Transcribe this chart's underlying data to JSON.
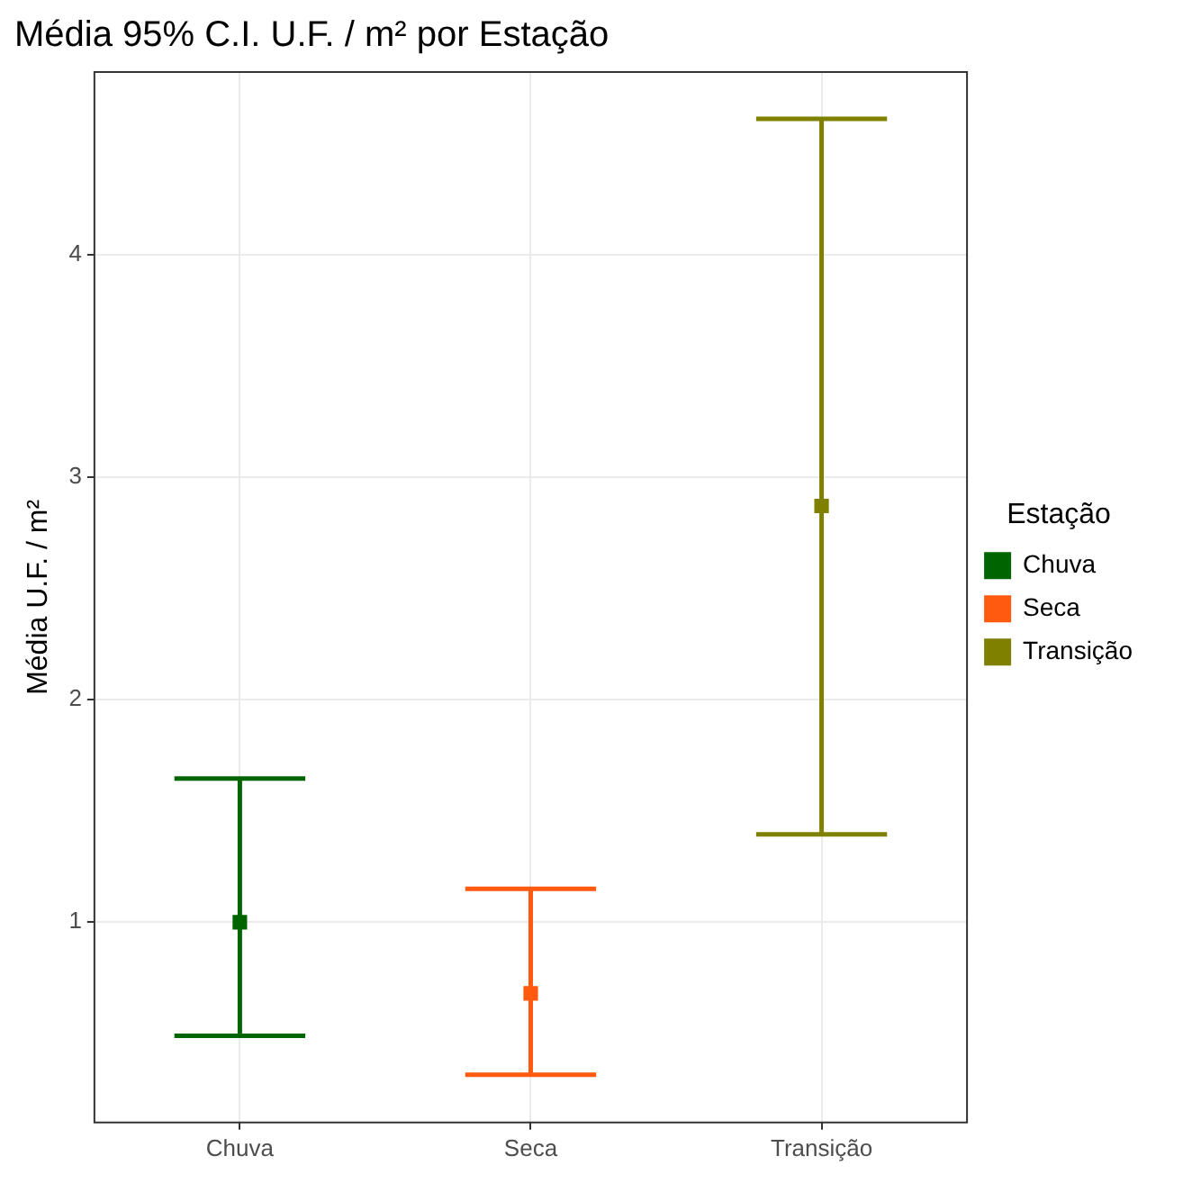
{
  "chart_data": {
    "type": "scatter",
    "title": "Média 95% C.I. U.F. / m² por Estação",
    "ylabel": "Média U.F. / m²",
    "legend_title": "Estação",
    "categories": [
      "Chuva",
      "Seca",
      "Transição"
    ],
    "series": [
      {
        "name": "Chuva",
        "color": "#006400",
        "values": [
          1.0,
          null,
          null
        ],
        "errors": [
          [
            0.49,
            1.645
          ],
          null,
          null
        ]
      },
      {
        "name": "Seca",
        "color": "#ff5a0f",
        "values": [
          null,
          0.68,
          null
        ],
        "errors": [
          null,
          [
            0.315,
            1.15
          ],
          null
        ]
      },
      {
        "name": "Transição",
        "color": "#808000",
        "values": [
          null,
          null,
          2.87
        ],
        "errors": [
          null,
          null,
          [
            1.395,
            4.61
          ]
        ]
      }
    ],
    "ylim": [
      0.1,
      4.82
    ],
    "yticks": [
      1,
      2,
      3,
      4
    ],
    "grid": true,
    "legend": "right",
    "marker": "square"
  }
}
